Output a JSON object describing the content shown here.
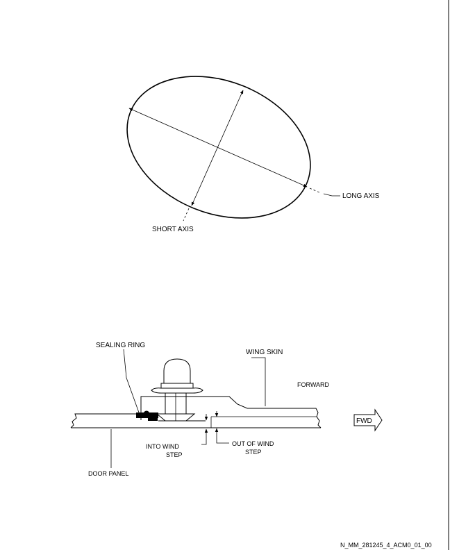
{
  "ellipse_figure": {
    "long_axis_label": "LONG AXIS",
    "short_axis_label": "SHORT AXIS"
  },
  "section_figure": {
    "sealing_ring_label": "SEALING RING",
    "wing_skin_label": "WING SKIN",
    "forward_label": "FORWARD",
    "fwd_arrow_label": "FWD",
    "into_wind_step_label_1": "INTO WIND",
    "into_wind_step_label_2": "STEP",
    "out_of_wind_step_label_1": "OUT OF WIND",
    "out_of_wind_step_label_2": "STEP",
    "door_panel_label": "DOOR PANEL"
  },
  "figure_id": "N_MM_281245_4_ACM0_01_00"
}
